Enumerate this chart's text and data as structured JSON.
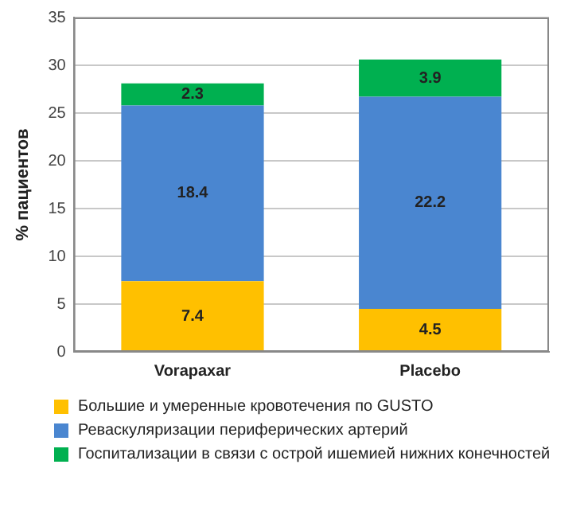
{
  "chart_data": {
    "type": "bar",
    "stacked": true,
    "ylabel": "% пациентов",
    "categories": [
      "Vorapaxar",
      "Placebo"
    ],
    "series": [
      {
        "name": "Большие и умеренные кровотечения по GUSTO",
        "color": "#ffc000",
        "values": [
          7.4,
          4.5
        ]
      },
      {
        "name": "Реваскуляризации периферических артерий",
        "color": "#4a86d0",
        "values": [
          18.4,
          22.2
        ]
      },
      {
        "name": "Госпитализации в связи с острой ишемией нижних конечностей",
        "color": "#00b050",
        "values": [
          2.3,
          3.9
        ]
      }
    ],
    "ylim": [
      0,
      35
    ],
    "yticks": [
      0,
      5,
      10,
      15,
      20,
      25,
      30,
      35
    ],
    "grid": "y",
    "legend": "bottom",
    "data_labels": true
  }
}
